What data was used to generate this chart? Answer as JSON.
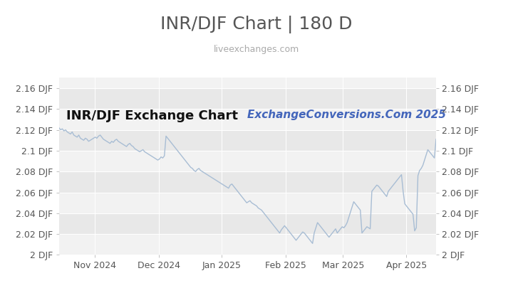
{
  "title": "INR/DJF Chart | 180 D",
  "subtitle": "liveexchanges.com",
  "watermark": "ExchangeConversions.Com 2025",
  "inner_label": "INR/DJF Exchange Chart",
  "ylim": [
    2.0,
    2.17
  ],
  "yticks": [
    2.0,
    2.02,
    2.04,
    2.06,
    2.08,
    2.1,
    2.12,
    2.14,
    2.16
  ],
  "ytick_labels": [
    "2 DJF",
    "2.02 DJF",
    "2.04 DJF",
    "2.06 DJF",
    "2.08 DJF",
    "2.1 DJF",
    "2.12 DJF",
    "2.14 DJF",
    "2.16 DJF"
  ],
  "xtick_labels": [
    "Nov 2024",
    "Dec 2024",
    "Jan 2025",
    "Feb 2025",
    "Mar 2025",
    "Apr 2025"
  ],
  "xtick_positions": [
    0.095,
    0.264,
    0.432,
    0.601,
    0.753,
    0.921
  ],
  "line_color": "#a8bdd4",
  "bg_color": "#ffffff",
  "plot_bg_light": "#f2f2f2",
  "plot_bg_dark": "#e8e8e8",
  "grid_color": "#ffffff",
  "title_color": "#555555",
  "subtitle_color": "#aaaaaa",
  "watermark_color": "#4466bb",
  "inner_label_color": "#111111",
  "title_fontsize": 18,
  "subtitle_fontsize": 9,
  "watermark_fontsize": 11,
  "inner_label_fontsize": 13,
  "tick_fontsize": 9,
  "data_points": [
    2.122,
    2.12,
    2.121,
    2.119,
    2.12,
    2.118,
    2.117,
    2.116,
    2.118,
    2.115,
    2.114,
    2.113,
    2.115,
    2.112,
    2.111,
    2.11,
    2.112,
    2.111,
    2.109,
    2.11,
    2.111,
    2.112,
    2.113,
    2.112,
    2.114,
    2.115,
    2.113,
    2.111,
    2.11,
    2.109,
    2.108,
    2.107,
    2.109,
    2.108,
    2.11,
    2.111,
    2.109,
    2.108,
    2.107,
    2.106,
    2.105,
    2.104,
    2.106,
    2.107,
    2.105,
    2.104,
    2.102,
    2.101,
    2.1,
    2.099,
    2.1,
    2.101,
    2.099,
    2.098,
    2.097,
    2.096,
    2.095,
    2.094,
    2.093,
    2.092,
    2.091,
    2.092,
    2.094,
    2.093,
    2.095,
    2.114,
    2.112,
    2.11,
    2.108,
    2.106,
    2.104,
    2.102,
    2.1,
    2.098,
    2.096,
    2.094,
    2.092,
    2.09,
    2.088,
    2.086,
    2.084,
    2.083,
    2.081,
    2.08,
    2.082,
    2.083,
    2.081,
    2.08,
    2.079,
    2.078,
    2.077,
    2.076,
    2.075,
    2.074,
    2.073,
    2.072,
    2.071,
    2.07,
    2.069,
    2.068,
    2.067,
    2.066,
    2.065,
    2.064,
    2.067,
    2.068,
    2.066,
    2.064,
    2.062,
    2.06,
    2.058,
    2.056,
    2.054,
    2.052,
    2.05,
    2.051,
    2.052,
    2.05,
    2.049,
    2.048,
    2.047,
    2.045,
    2.044,
    2.043,
    2.041,
    2.039,
    2.037,
    2.035,
    2.033,
    2.031,
    2.029,
    2.027,
    2.025,
    2.023,
    2.021,
    2.024,
    2.026,
    2.028,
    2.026,
    2.024,
    2.022,
    2.02,
    2.018,
    2.016,
    2.014,
    2.016,
    2.018,
    2.02,
    2.022,
    2.021,
    2.019,
    2.017,
    2.015,
    2.013,
    2.011,
    2.021,
    2.026,
    2.031,
    2.029,
    2.027,
    2.025,
    2.023,
    2.021,
    2.019,
    2.017,
    2.019,
    2.021,
    2.023,
    2.025,
    2.021,
    2.023,
    2.025,
    2.027,
    2.026,
    2.028,
    2.031,
    2.036,
    2.041,
    2.046,
    2.051,
    2.049,
    2.047,
    2.045,
    2.043,
    2.021,
    2.023,
    2.025,
    2.027,
    2.026,
    2.025,
    2.061,
    2.063,
    2.065,
    2.067,
    2.066,
    2.064,
    2.062,
    2.06,
    2.058,
    2.056,
    2.061,
    2.063,
    2.065,
    2.067,
    2.069,
    2.071,
    2.073,
    2.075,
    2.077,
    2.061,
    2.049,
    2.047,
    2.045,
    2.043,
    2.041,
    2.039,
    2.023,
    2.026,
    2.076,
    2.081,
    2.083,
    2.086,
    2.091,
    2.096,
    2.101,
    2.099,
    2.097,
    2.095,
    2.093,
    2.111
  ]
}
